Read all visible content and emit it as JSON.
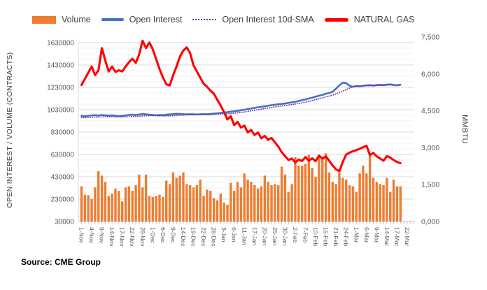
{
  "source": {
    "text": "Source: CME Group"
  },
  "chart_data": {
    "type": "combo",
    "title": "",
    "legend_position": "top",
    "grid": true,
    "source_note": "Source: CME Group",
    "n_points": 97,
    "points_per_label": 3,
    "x_tick_labels": [
      "1-Nov",
      "4-Nov",
      "9-Nov",
      "14-Nov",
      "17-Nov",
      "22-Nov",
      "28-Nov",
      "1-Dec",
      "6-Dec",
      "9-Dec",
      "14-Dec",
      "19-Dec",
      "22-Dec",
      "28-Dec",
      "3-Jan",
      "6-Jan",
      "11-Jan",
      "17-Jan",
      "20-Jan",
      "25-Jan",
      "30-Jan",
      "2-Feb",
      "7-Feb",
      "10-Feb",
      "15-Feb",
      "21-Feb",
      "24-Feb",
      "1-Mar",
      "6-Mar",
      "9-Mar",
      "14-Mar",
      "17-Mar",
      "22-Mar"
    ],
    "left_axis": {
      "label": "OPEN INTEREST / VOLUME (CONTRACTS)",
      "min": 30000,
      "max": 1630000,
      "major_unit": 200000,
      "minor_gridline_unit": 50000,
      "tick_labels": [
        "30000",
        "230000",
        "430000",
        "630000",
        "830000",
        "1030000",
        "1230000",
        "1430000",
        "1630000"
      ]
    },
    "right_axis": {
      "label": "MMBTU",
      "min": 0.0,
      "max": 7.5,
      "major_unit": 1.5,
      "tick_labels": [
        "0,000",
        "1,500",
        "3,000",
        "4,500",
        "6,000",
        "7,500"
      ]
    },
    "colors": {
      "volume": "#ED7D31",
      "open_interest": "#4472C4",
      "sma": "#7030A0",
      "gas": "#FF0000",
      "grid_minor": "#F2F2F2",
      "grid_major": "#D9D9D9",
      "axis_line": "#BFBFBF",
      "tick_text": "#595959"
    },
    "series": [
      {
        "name": "Volume",
        "type": "bar",
        "axis": "left",
        "color": "#ED7D31",
        "values": [
          345000,
          270000,
          265000,
          230000,
          335000,
          480000,
          440000,
          385000,
          260000,
          280000,
          325000,
          305000,
          210000,
          335000,
          345000,
          305000,
          355000,
          450000,
          335000,
          450000,
          260000,
          250000,
          260000,
          270000,
          250000,
          395000,
          365000,
          470000,
          420000,
          440000,
          470000,
          365000,
          355000,
          335000,
          355000,
          405000,
          260000,
          315000,
          305000,
          240000,
          220000,
          280000,
          200000,
          180000,
          375000,
          305000,
          385000,
          335000,
          460000,
          405000,
          385000,
          355000,
          325000,
          345000,
          440000,
          385000,
          355000,
          365000,
          355000,
          520000,
          450000,
          295000,
          365000,
          605000,
          530000,
          530000,
          545000,
          625000,
          510000,
          430000,
          605000,
          605000,
          640000,
          470000,
          385000,
          365000,
          470000,
          420000,
          405000,
          355000,
          345000,
          295000,
          460000,
          530000,
          460000,
          630000,
          420000,
          385000,
          365000,
          355000,
          420000,
          295000,
          405000,
          345000,
          345000,
          null,
          null
        ]
      },
      {
        "name": "Open Interest",
        "type": "line",
        "axis": "left",
        "color": "#4472C4",
        "values": [
          975000,
          972000,
          976000,
          979000,
          981000,
          978000,
          983000,
          980000,
          977000,
          980000,
          976000,
          973000,
          975000,
          979000,
          983000,
          986000,
          983000,
          987000,
          992000,
          989000,
          985000,
          983000,
          980000,
          983000,
          981000,
          985000,
          988000,
          991000,
          994000,
          992000,
          990000,
          988000,
          990000,
          989000,
          987000,
          989000,
          991000,
          989000,
          992000,
          995000,
          998000,
          1001000,
          1004000,
          1008000,
          1012000,
          1016000,
          1020000,
          1025000,
          1030000,
          1036000,
          1041000,
          1046000,
          1052000,
          1056000,
          1061000,
          1066000,
          1070000,
          1075000,
          1079000,
          1082000,
          1086000,
          1091000,
          1096000,
          1101000,
          1108000,
          1115000,
          1122000,
          1130000,
          1138000,
          1147000,
          1155000,
          1163000,
          1172000,
          1180000,
          1190000,
          1218000,
          1248000,
          1272000,
          1268000,
          1245000,
          1235000,
          1242000,
          1238000,
          1244000,
          1248000,
          1250000,
          1246000,
          1250000,
          1253000,
          1250000,
          1254000,
          1257000,
          1252000,
          1248000,
          1253000,
          null,
          null
        ]
      },
      {
        "name": "Open Interest 10d-SMA",
        "type": "line",
        "style": "dotted",
        "axis": "left",
        "color": "#7030A0",
        "values": [
          960000,
          959000,
          960000,
          962000,
          964000,
          965000,
          966000,
          967000,
          967000,
          968000,
          967000,
          966000,
          966000,
          966000,
          967000,
          969000,
          970000,
          972000,
          974000,
          976000,
          977000,
          977000,
          976000,
          975000,
          974000,
          974000,
          975000,
          977000,
          979000,
          981000,
          982000,
          983000,
          984000,
          985000,
          985000,
          986000,
          986000,
          987000,
          987000,
          988000,
          989000,
          990000,
          992000,
          994000,
          996000,
          999000,
          1002000,
          1006000,
          1010000,
          1015000,
          1020000,
          1025000,
          1030000,
          1035000,
          1040000,
          1045000,
          1050000,
          1055000,
          1060000,
          1064000,
          1068000,
          1072000,
          1076000,
          1081000,
          1086000,
          1092000,
          1098000,
          1105000,
          1112000,
          1120000,
          1128000,
          1136000,
          1144000,
          1152000,
          1161000,
          1171000,
          1183000,
          1196000,
          1210000,
          1224000,
          1235000,
          1241000,
          1243000,
          1243000,
          1244000,
          1246000,
          1247000,
          1247000,
          1248000,
          1249000,
          1250000,
          1251000,
          1251000,
          1250000,
          1250000,
          null,
          null
        ]
      },
      {
        "name": "NATURAL GAS",
        "type": "line",
        "axis": "right",
        "color": "#FF0000",
        "unit": "$/MMBTU",
        "values": [
          5.55,
          5.8,
          6.05,
          6.3,
          5.95,
          6.15,
          7.05,
          6.55,
          6.1,
          6.3,
          6.08,
          6.15,
          6.1,
          6.3,
          6.48,
          6.62,
          6.45,
          6.8,
          7.35,
          7.05,
          7.28,
          7.0,
          6.6,
          6.2,
          5.85,
          5.58,
          5.53,
          5.95,
          6.3,
          6.7,
          6.95,
          7.08,
          6.85,
          6.35,
          6.1,
          5.85,
          5.6,
          5.48,
          5.32,
          5.2,
          4.95,
          4.72,
          4.45,
          4.15,
          4.28,
          3.92,
          4.05,
          3.82,
          3.9,
          3.62,
          3.72,
          3.52,
          3.62,
          3.38,
          3.48,
          3.32,
          3.4,
          3.22,
          3.05,
          2.82,
          2.66,
          2.5,
          2.56,
          2.4,
          2.52,
          2.46,
          2.62,
          2.47,
          2.57,
          2.45,
          2.68,
          2.56,
          2.65,
          2.47,
          2.28,
          2.12,
          2.05,
          2.42,
          2.72,
          2.8,
          2.86,
          2.9,
          2.96,
          3.02,
          3.08,
          2.7,
          2.79,
          2.65,
          2.56,
          2.47,
          2.66,
          2.6,
          2.5,
          2.42,
          2.37,
          null,
          null
        ]
      }
    ]
  }
}
